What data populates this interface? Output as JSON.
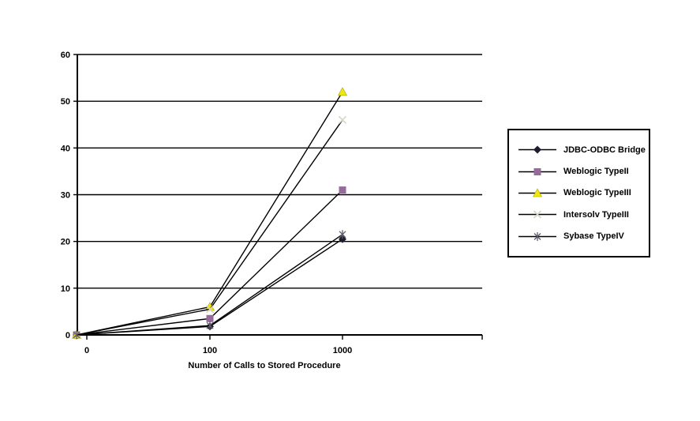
{
  "page": {
    "background_color": "#ffffff"
  },
  "chart_data": {
    "type": "line",
    "title": "",
    "xlabel": "Number of Calls to Stored Procedure",
    "ylabel": "",
    "categories": [
      "0",
      "100",
      "1000"
    ],
    "y_ticks": [
      0,
      10,
      20,
      30,
      40,
      50,
      60
    ],
    "ylim": [
      0,
      60
    ],
    "grid": true,
    "legend_position": "right",
    "line_color": "#000000",
    "text_color": "#000000",
    "axis_color": "#000000",
    "series": [
      {
        "name": "JDBC-ODBC Bridge",
        "marker": "diamond",
        "marker_color": "#1c1c2e",
        "values": [
          0,
          1.8,
          20.5
        ]
      },
      {
        "name": "Weblogic TypeII",
        "marker": "square",
        "marker_color": "#966a9b",
        "values": [
          0,
          3.5,
          31
        ]
      },
      {
        "name": "Weblogic TypeIII",
        "marker": "triangle",
        "marker_color": "#f0e80a",
        "values": [
          0,
          6,
          52
        ]
      },
      {
        "name": "Intersolv TypeIII",
        "marker": "x",
        "marker_color": "#d6d6c6",
        "values": [
          0,
          5.5,
          46
        ]
      },
      {
        "name": "Sybase TypeIV",
        "marker": "asterisk",
        "marker_color": "#615a6b",
        "values": [
          0,
          2,
          21.5
        ]
      }
    ]
  }
}
